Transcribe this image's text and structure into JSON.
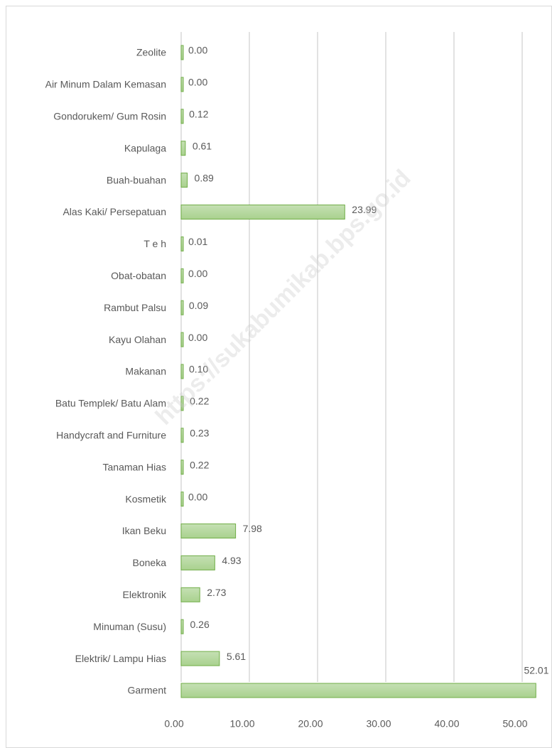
{
  "chart_data": {
    "type": "bar",
    "orientation": "horizontal",
    "watermark": "https://sukabumikab.bps.go.id",
    "categories": [
      "Zeolite",
      "Air Minum Dalam Kemasan",
      "Gondorukem/ Gum Rosin",
      "Kapulaga",
      "Buah-buahan",
      "Alas Kaki/ Persepatuan",
      "T e h",
      "Obat-obatan",
      "Rambut Palsu",
      "Kayu Olahan",
      "Makanan",
      "Batu Templek/ Batu Alam",
      "Handycraft and Furniture",
      "Tanaman Hias",
      "Kosmetik",
      "Ikan Beku",
      "Boneka",
      "Elektronik",
      "Minuman (Susu)",
      "Elektrik/ Lampu Hias",
      "Garment"
    ],
    "values": [
      0,
      0,
      0.12,
      0.61,
      0.89,
      23.99,
      0.01,
      0,
      0.09,
      0,
      0.1,
      0.22,
      0.23,
      0.22,
      0,
      7.98,
      4.93,
      2.73,
      0.26,
      5.61,
      52.01
    ],
    "value_labels": [
      "0.00",
      "0.00",
      "0.12",
      "0.61",
      "0.89",
      "23.99",
      "0.01",
      "0.00",
      "0.09",
      "0.00",
      "0.10",
      "0.22",
      "0.23",
      "0.22",
      "0.00",
      "7.98",
      "4.93",
      "2.73",
      "0.26",
      "5.61",
      "52.01"
    ],
    "color": "#a9d18e",
    "xlim": [
      0,
      50
    ],
    "xticks": [
      {
        "value": 0,
        "label": "0.00"
      },
      {
        "value": 10,
        "label": "10.00"
      },
      {
        "value": 20,
        "label": "20.00"
      },
      {
        "value": 30,
        "label": "30.00"
      },
      {
        "value": 40,
        "label": "40.00"
      },
      {
        "value": 50,
        "label": "50.00"
      }
    ],
    "grid": true
  }
}
